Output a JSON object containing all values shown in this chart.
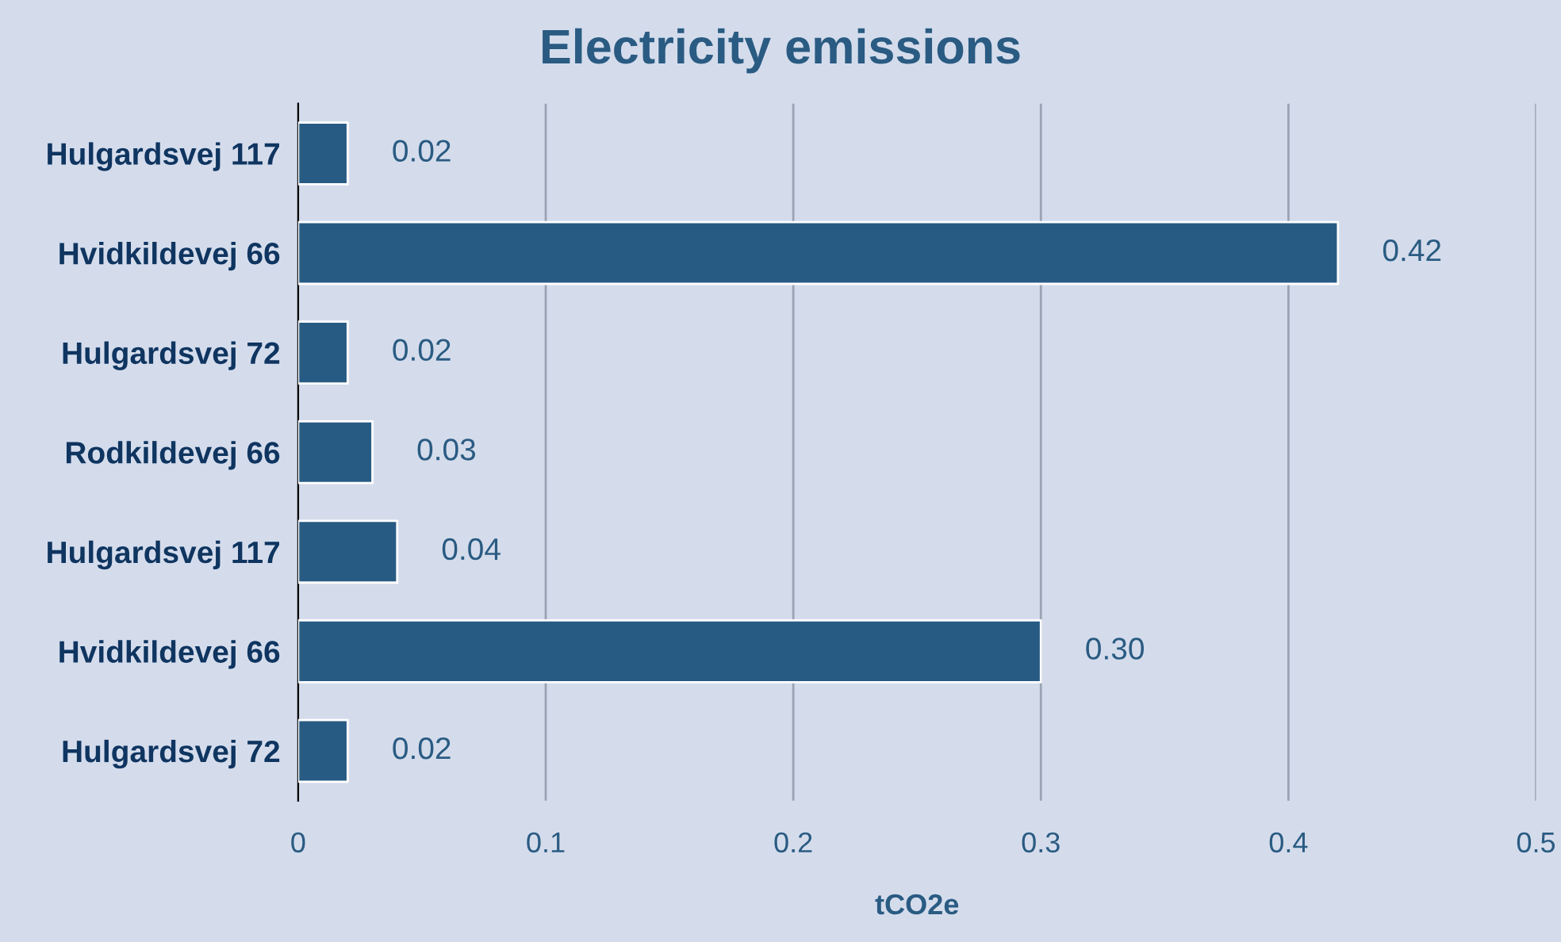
{
  "chart_data": {
    "type": "bar",
    "orientation": "horizontal",
    "title": "Electricity emissions",
    "xlabel": "tCO2e",
    "categories": [
      "Hulgardsvej 117",
      "Hvidkildevej 66",
      "Hulgardsvej 72",
      "Rodkildevej 66",
      "Hulgardsvej 117",
      "Hvidkildevej 66",
      "Hulgardsvej 72"
    ],
    "values": [
      0.02,
      0.42,
      0.02,
      0.03,
      0.04,
      0.3,
      0.02
    ],
    "value_labels": [
      "0.02",
      "0.42",
      "0.02",
      "0.03",
      "0.04",
      "0.30",
      "0.02"
    ],
    "color": "#275b84",
    "xlim": [
      0,
      0.5
    ],
    "xticks": [
      0,
      0.1,
      0.2,
      0.3,
      0.4,
      0.5
    ],
    "grid": "x"
  }
}
